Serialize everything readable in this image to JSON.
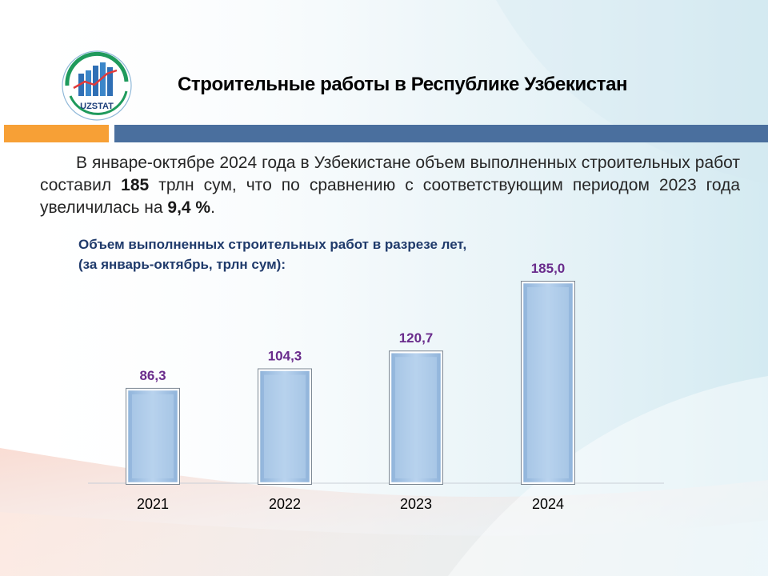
{
  "header": {
    "logo_text": "UZSTAT",
    "title": "Строительные работы в Республике Узбекистан"
  },
  "intro": {
    "text_1": "В январе-октябре 2024 года в Узбекистане объем выполненных строительных работ составил ",
    "highlight_1": "185",
    "text_2": " трлн сум, что по сравнению с соответствующим  периодом  2023 года увеличилась на ",
    "highlight_2": "9,4 %",
    "text_3": "."
  },
  "colors": {
    "bar_fill": "#a9c8e8",
    "value_label": "#6a2c8c",
    "accent_orange": "#f7a036",
    "accent_blue": "#4a6f9e"
  },
  "chart_data": {
    "type": "bar",
    "title": "Объем выполненных строительных работ в разрезе лет,",
    "subtitle": "(за январь-октябрь, трлн сум):",
    "categories": [
      "2021",
      "2022",
      "2023",
      "2024"
    ],
    "values": [
      86.3,
      104.3,
      120.7,
      185.0
    ],
    "value_labels": [
      "86,3",
      "104,3",
      "120,7",
      "185,0"
    ],
    "xlabel": "",
    "ylabel": "",
    "ylim": [
      0,
      185
    ],
    "grid": false,
    "legend": "none"
  }
}
